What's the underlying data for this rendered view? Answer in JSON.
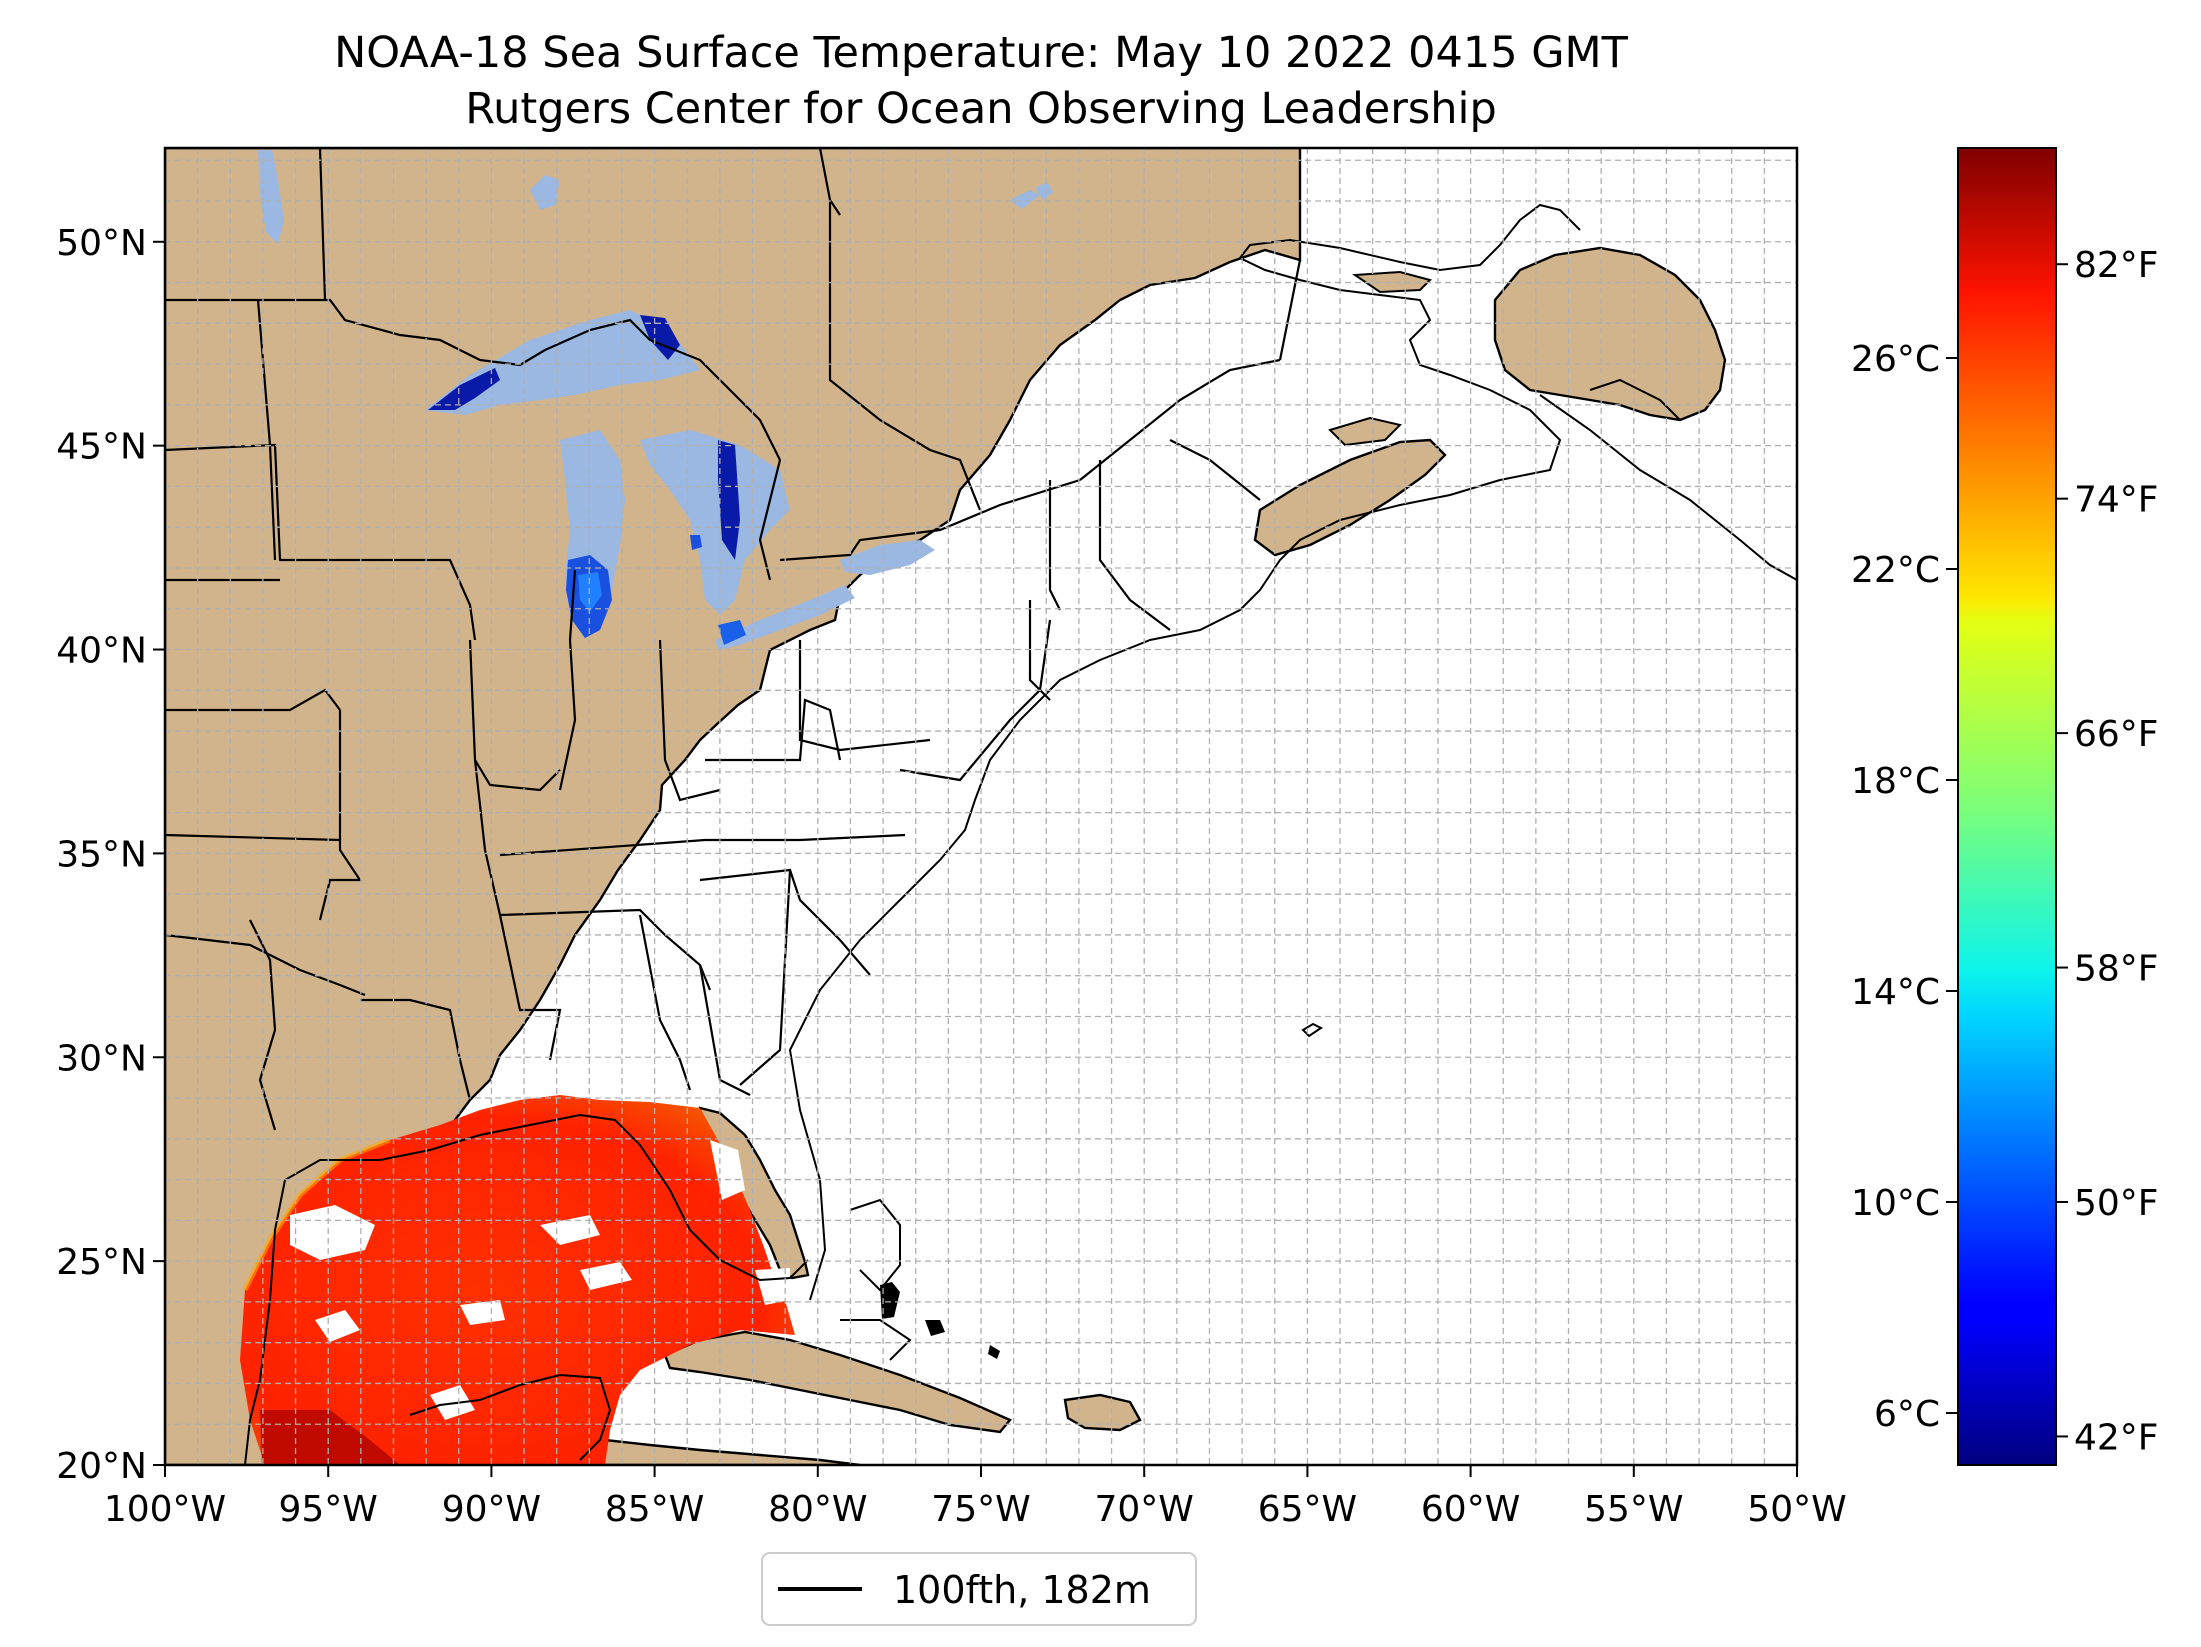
{
  "title": {
    "line1": "NOAA-18 Sea Surface Temperature: May 10 2022 0415 GMT",
    "line2": "Rutgers Center for Ocean Observing Leadership"
  },
  "map": {
    "lon_range": [
      -100,
      -50
    ],
    "lat_range": [
      20,
      52.3
    ],
    "x_ticks": [
      {
        "lon": -100,
        "label": "100°W"
      },
      {
        "lon": -95,
        "label": "95°W"
      },
      {
        "lon": -90,
        "label": "90°W"
      },
      {
        "lon": -85,
        "label": "85°W"
      },
      {
        "lon": -80,
        "label": "80°W"
      },
      {
        "lon": -75,
        "label": "75°W"
      },
      {
        "lon": -70,
        "label": "70°W"
      },
      {
        "lon": -65,
        "label": "65°W"
      },
      {
        "lon": -60,
        "label": "60°W"
      },
      {
        "lon": -55,
        "label": "55°W"
      },
      {
        "lon": -50,
        "label": "50°W"
      }
    ],
    "y_ticks": [
      {
        "lat": 20,
        "label": "20°N"
      },
      {
        "lat": 25,
        "label": "25°N"
      },
      {
        "lat": 30,
        "label": "30°N"
      },
      {
        "lat": 35,
        "label": "35°N"
      },
      {
        "lat": 40,
        "label": "40°N"
      },
      {
        "lat": 45,
        "label": "45°N"
      },
      {
        "lat": 50,
        "label": "50°N"
      }
    ],
    "grid": "dashed, 1° spacing",
    "colors": {
      "land": "#d2b48c",
      "lakes": "#9ab8e2",
      "ocean": "#ffffff",
      "grid": "#b0b0b0"
    }
  },
  "colorbar": {
    "colormap": "jet",
    "celsius_ticks": [
      {
        "value": 6,
        "label": "6°C"
      },
      {
        "value": 10,
        "label": "10°C"
      },
      {
        "value": 14,
        "label": "14°C"
      },
      {
        "value": 18,
        "label": "18°C"
      },
      {
        "value": 22,
        "label": "22°C"
      },
      {
        "value": 26,
        "label": "26°C"
      }
    ],
    "fahrenheit_ticks": [
      {
        "value": 42,
        "label": "42°F"
      },
      {
        "value": 50,
        "label": "50°F"
      },
      {
        "value": 58,
        "label": "58°F"
      },
      {
        "value": 66,
        "label": "66°F"
      },
      {
        "value": 74,
        "label": "74°F"
      },
      {
        "value": 82,
        "label": "82°F"
      }
    ]
  },
  "legend": {
    "label": "100fth, 182m"
  }
}
